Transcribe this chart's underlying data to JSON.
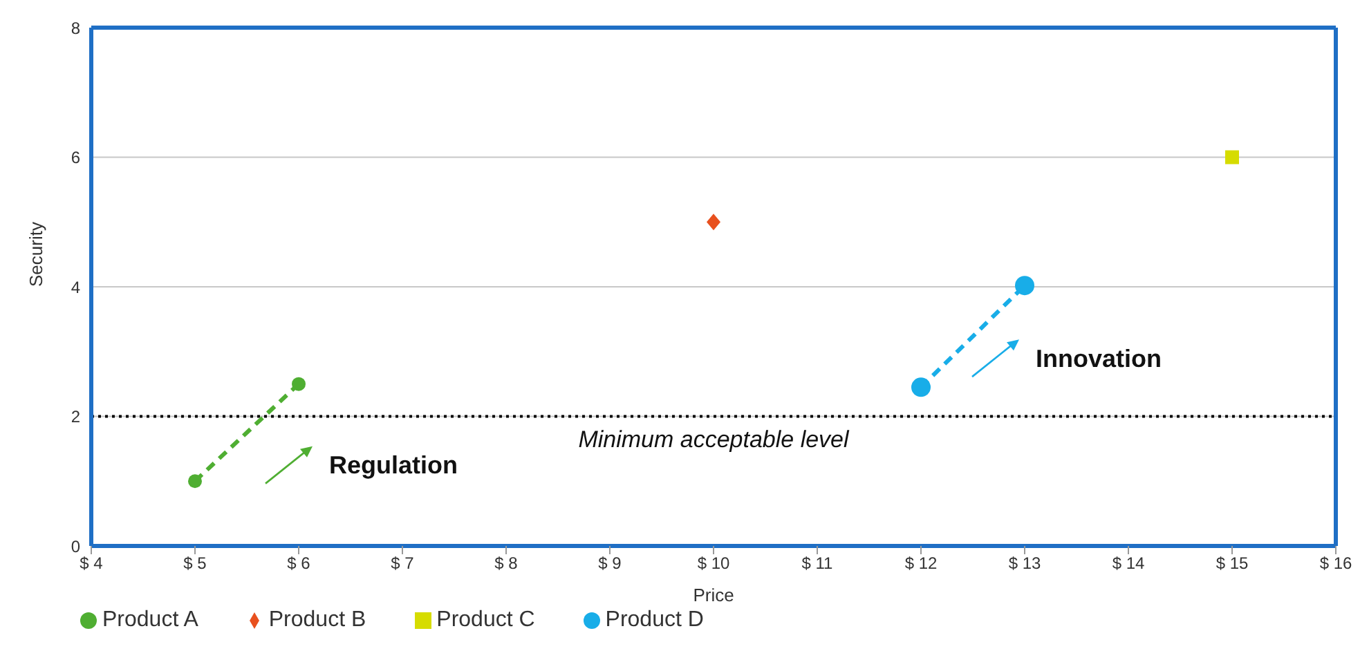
{
  "chart_data": {
    "type": "scatter",
    "xlabel": "Price",
    "ylabel": "Security",
    "xlim": [
      4,
      16
    ],
    "xticks": [
      {
        "value": 4,
        "label": "$ 4"
      },
      {
        "value": 5,
        "label": "$ 5"
      },
      {
        "value": 6,
        "label": "$ 6"
      },
      {
        "value": 7,
        "label": "$ 7"
      },
      {
        "value": 8,
        "label": "$ 8"
      },
      {
        "value": 9,
        "label": "$ 9"
      },
      {
        "value": 10,
        "label": "$ 10"
      },
      {
        "value": 11,
        "label": "$ 11"
      },
      {
        "value": 12,
        "label": "$ 12"
      },
      {
        "value": 13,
        "label": "$ 13"
      },
      {
        "value": 14,
        "label": "$ 14"
      },
      {
        "value": 15,
        "label": "$ 15"
      },
      {
        "value": 16,
        "label": "$ 16"
      }
    ],
    "ylim": [
      0,
      8
    ],
    "yticks": [
      0,
      2,
      4,
      6,
      8
    ],
    "grid": "y",
    "legend": "bottom left",
    "series": [
      {
        "name": "Product A",
        "type": "line",
        "marker": "circle",
        "line_style": "dashed",
        "color": "#4fae32",
        "x": [
          5,
          6
        ],
        "values": [
          1,
          2.5
        ]
      },
      {
        "name": "Product B",
        "type": "scatter",
        "marker": "diamond",
        "color": "#e8501e",
        "x": [
          10
        ],
        "values": [
          5
        ]
      },
      {
        "name": "Product C",
        "type": "scatter",
        "marker": "square",
        "color": "#d6dc00",
        "x": [
          15
        ],
        "values": [
          6
        ]
      },
      {
        "name": "Product D",
        "type": "line",
        "marker": "circle",
        "line_style": "dashed",
        "color": "#18ade8",
        "x": [
          12,
          13
        ],
        "values": [
          2.45,
          4.02
        ]
      }
    ],
    "ref_lines": [
      {
        "axis": "y",
        "value": 2,
        "label": "Minimum acceptable level",
        "color": "#000000",
        "line_style": "dotted"
      }
    ],
    "annotations": [
      "Regulation",
      "Innovation"
    ]
  }
}
